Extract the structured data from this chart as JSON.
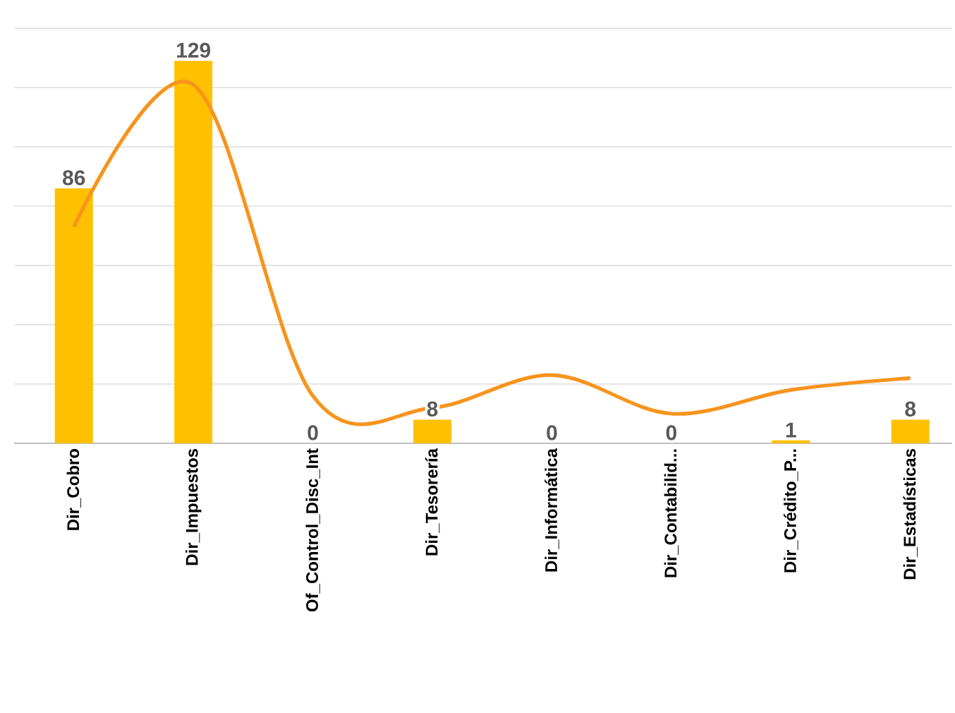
{
  "chart_data": {
    "type": "bar",
    "categories": [
      "Dir_Cobro",
      "Dir_Impuestos",
      "Of_Control_Disc_Int",
      "Dir_Tesorería",
      "Dir_Informática",
      "Dir_Contabilid...",
      "Dir_Crédito_P...",
      "Dir_Estadísticas"
    ],
    "series": [
      {
        "color": "#ffc000",
        "values": [
          86,
          129,
          0,
          8,
          0,
          0,
          1,
          8
        ],
        "value_labels": [
          "86",
          "129",
          "0",
          "8",
          "0",
          "0",
          "1",
          "8"
        ]
      },
      {
        "type": "line",
        "color": "#f7941d",
        "values": [
          73,
          121,
          16,
          12,
          23,
          10,
          18,
          22
        ]
      }
    ],
    "ylim": [
      0,
      140
    ],
    "yticks": [
      {
        "value": 0,
        "label": null
      },
      {
        "value": 20,
        "label": null
      },
      {
        "value": 40,
        "label": null
      },
      {
        "value": 60,
        "label": null
      },
      {
        "value": 80,
        "label": null
      },
      {
        "value": 100,
        "label": null
      },
      {
        "value": 120,
        "label": null
      },
      {
        "value": 140,
        "label": null
      }
    ],
    "grid": "y",
    "marker": "none"
  }
}
